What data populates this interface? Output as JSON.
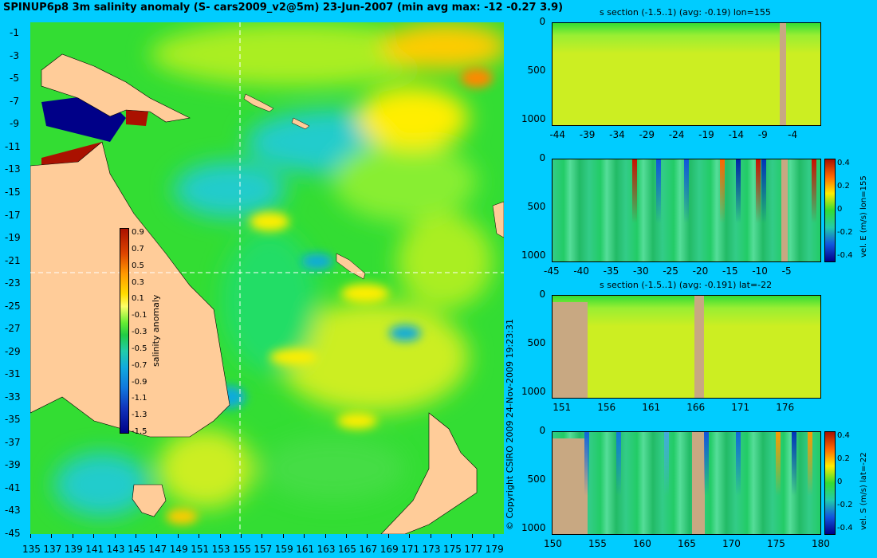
{
  "title": "SPINUP6p8 3m salinity anomaly (S- cars2009_v2@5m) 23-Jun-2007 (min avg max: -12 -0.27 3.9)",
  "copyright": "© Copyright CSIRO 2009   24-Nov-2009 19:23:31",
  "colors": {
    "background": "#00ccff",
    "land": "#ffcc99",
    "section_land": "#c8a882",
    "ocean_mid": "#33dd33",
    "ocean_high": "#ffee00",
    "ocean_low": "#11aadd",
    "extreme_high": "#aa1100",
    "extreme_low": "#000088"
  },
  "map": {
    "type": "map-heatmap",
    "lon_range": [
      135,
      180
    ],
    "lat_range": [
      -45,
      0
    ],
    "x_ticks": [
      "135",
      "137",
      "139",
      "141",
      "143",
      "145",
      "147",
      "149",
      "151",
      "153",
      "155",
      "157",
      "159",
      "161",
      "163",
      "165",
      "167",
      "169",
      "171",
      "173",
      "175",
      "177",
      "179"
    ],
    "y_ticks": [
      "-1",
      "-3",
      "-5",
      "-7",
      "-9",
      "-11",
      "-13",
      "-15",
      "-17",
      "-19",
      "-21",
      "-23",
      "-25",
      "-27",
      "-29",
      "-31",
      "-33",
      "-35",
      "-37",
      "-39",
      "-41",
      "-43",
      "-45"
    ],
    "crosshair": {
      "lon": 155,
      "lat": -22
    },
    "colorbar": {
      "label": "salinity anomaly",
      "ticks": [
        "0.9",
        "0.7",
        "0.5",
        "0.3",
        "0.1",
        "-0.1",
        "-0.3",
        "-0.5",
        "-0.7",
        "-0.9",
        "-1.1",
        "-1.3",
        "-1.5"
      ],
      "range": [
        -1.5,
        0.9
      ]
    }
  },
  "chart_data": [
    {
      "type": "heatmap",
      "title": "s section (-1.5..1) (avg: -0.19) lon=155",
      "x_ticks": [
        "-44",
        "-39",
        "-34",
        "-29",
        "-24",
        "-19",
        "-14",
        "-9",
        "-4"
      ],
      "x_range": [
        -45,
        0
      ],
      "y_ticks": [
        "0",
        "500",
        "1000"
      ],
      "y_range": [
        0,
        1050
      ]
    },
    {
      "type": "heatmap",
      "title": "",
      "x_ticks": [
        "-45",
        "-40",
        "-35",
        "-30",
        "-25",
        "-20",
        "-15",
        "-10",
        "-5"
      ],
      "x_range": [
        -45,
        0
      ],
      "y_ticks": [
        "0",
        "500",
        "1000"
      ],
      "y_range": [
        0,
        1050
      ],
      "colorbar": {
        "label": "vel. E (m/s) lon=155",
        "ticks": [
          "0.4",
          "0.2",
          "0",
          "-0.2",
          "-0.4"
        ]
      }
    },
    {
      "type": "heatmap",
      "title": "s section (-1.5..1) (avg: -0.191) lat=-22",
      "x_ticks": [
        "151",
        "156",
        "161",
        "166",
        "171",
        "176"
      ],
      "x_range": [
        150,
        180
      ],
      "y_ticks": [
        "0",
        "500",
        "1000"
      ],
      "y_range": [
        0,
        1050
      ]
    },
    {
      "type": "heatmap",
      "title": "",
      "x_ticks": [
        "150",
        "155",
        "160",
        "165",
        "170",
        "175",
        "180"
      ],
      "x_range": [
        150,
        180
      ],
      "y_ticks": [
        "0",
        "500",
        "1000"
      ],
      "y_range": [
        0,
        1050
      ],
      "colorbar": {
        "label": "vel. S (m/s) lat=-22",
        "ticks": [
          "0.4",
          "0.2",
          "0",
          "-0.2",
          "-0.4"
        ]
      }
    }
  ]
}
